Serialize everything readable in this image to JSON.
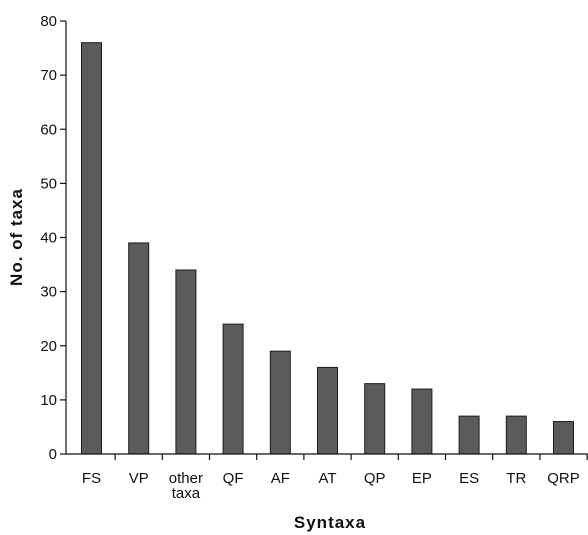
{
  "chart_data": {
    "type": "bar",
    "title": "",
    "xlabel": "Syntaxa",
    "ylabel": "No. of taxa",
    "ylim": [
      0,
      80
    ],
    "yticks": [
      0,
      10,
      20,
      30,
      40,
      50,
      60,
      70,
      80
    ],
    "categories": [
      "FS",
      "VP",
      "other taxa",
      "QF",
      "AF",
      "AT",
      "QP",
      "EP",
      "ES",
      "TR",
      "QRP"
    ],
    "values": [
      76,
      39,
      34,
      24,
      19,
      16,
      13,
      12,
      7,
      7,
      6
    ],
    "grid": false,
    "bar_color": "#5b5b5e"
  }
}
